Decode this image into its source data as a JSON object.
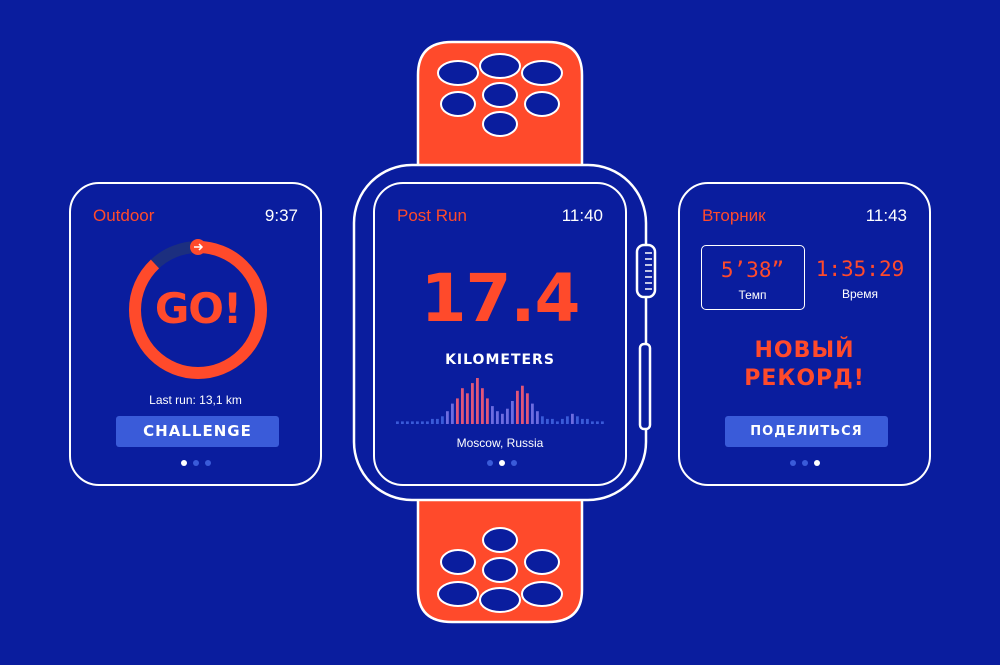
{
  "left_screen": {
    "title": "Outdoor",
    "time": "9:37",
    "progress_label": "GO!",
    "progress_fraction": 0.88,
    "last_run": "Last run: 13,1 km",
    "button_label": "CHALLENGE",
    "page_dots": 3,
    "active_dot": 0
  },
  "center_screen": {
    "title": "Post Run",
    "time": "11:40",
    "distance": "17.4",
    "unit": "KILOMETERS",
    "location": "Moscow, Russia",
    "page_dots": 3,
    "active_dot": 1,
    "waveform_levels": [
      1,
      1,
      1,
      1,
      1,
      1,
      1,
      2,
      2,
      3,
      5,
      8,
      10,
      14,
      12,
      16,
      18,
      14,
      10,
      7,
      5,
      4,
      6,
      9,
      13,
      15,
      12,
      8,
      5,
      3,
      2,
      2,
      1,
      2,
      3,
      4,
      3,
      2,
      2,
      1,
      1,
      1
    ]
  },
  "right_screen": {
    "title": "Вторник",
    "time": "11:43",
    "pace_value": "5’38”",
    "pace_label": "Темп",
    "duration_value": "1:35:29",
    "duration_label": "Время",
    "record_line1": "НОВЫЙ",
    "record_line2": "РЕКОРД!",
    "button_label": "ПОДЕЛИТЬСЯ",
    "page_dots": 3,
    "active_dot": 2
  },
  "colors": {
    "background": "#0a1d9e",
    "accent": "#ff4a2b",
    "button": "#3a5bd9",
    "outline": "#ffffff"
  }
}
